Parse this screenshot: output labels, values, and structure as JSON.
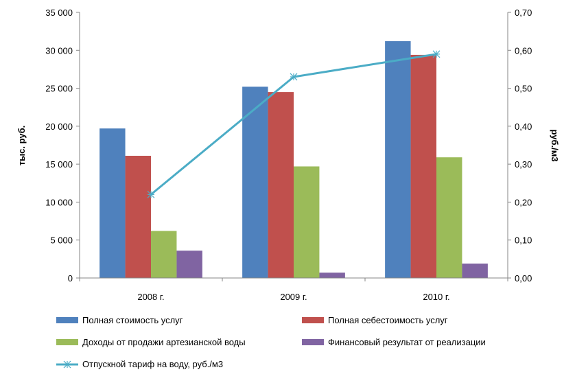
{
  "chart_data": {
    "type": "bar",
    "categories": [
      "2008 г.",
      "2009 г.",
      "2010 г."
    ],
    "series": [
      {
        "name": "Полная стоимость услуг",
        "values": [
          19700,
          25200,
          31200
        ],
        "color": "#4F81BD",
        "axis": "left"
      },
      {
        "name": "Полная себестоимость услуг",
        "values": [
          16100,
          24500,
          29400
        ],
        "color": "#C0504D",
        "axis": "left"
      },
      {
        "name": "Доходы от продажи артезианской воды",
        "values": [
          6200,
          14700,
          15900
        ],
        "color": "#9BBB59",
        "axis": "left"
      },
      {
        "name": "Финансовый результат от реализации",
        "values": [
          3600,
          700,
          1900
        ],
        "color": "#8064A2",
        "axis": "left"
      }
    ],
    "line_series": {
      "name": "Отпускной тариф на воду, руб./м3",
      "values": [
        0.22,
        0.53,
        0.59
      ],
      "color": "#4BACC6",
      "type": "line",
      "marker": "star",
      "axis": "right"
    },
    "ylabel": "тыс. руб.",
    "y2label": "руб./м3",
    "ylim": [
      0,
      35000
    ],
    "y2lim": [
      0,
      0.7
    ],
    "y_ticks": [
      "0",
      "5 000",
      "10 000",
      "15 000",
      "20 000",
      "25 000",
      "30 000",
      "35 000"
    ],
    "y2_ticks": [
      "0,00",
      "0,10",
      "0,20",
      "0,30",
      "0,40",
      "0,50",
      "0,60",
      "0,70"
    ],
    "grid": false,
    "legend_position": "bottom"
  }
}
